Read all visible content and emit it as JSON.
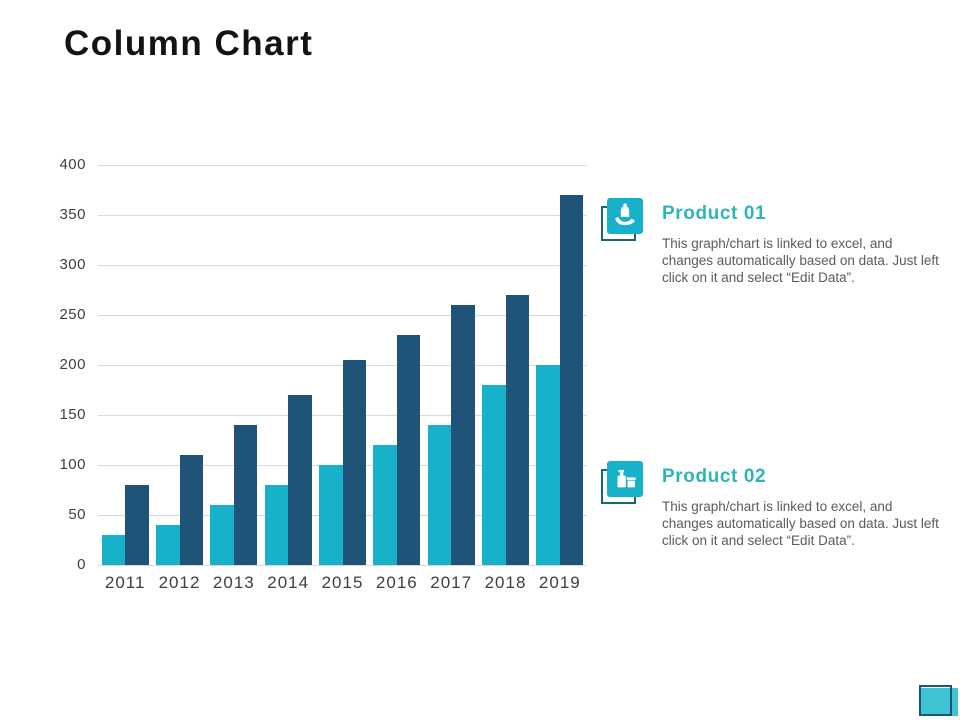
{
  "slide": {
    "title": "Column Chart"
  },
  "chart_data": {
    "type": "bar",
    "title": "",
    "categories": [
      "2011",
      "2012",
      "2013",
      "2014",
      "2015",
      "2016",
      "2017",
      "2018",
      "2019"
    ],
    "series": [
      {
        "name": "Product 01",
        "color": "#17b1c9",
        "values": [
          30,
          40,
          60,
          80,
          100,
          120,
          140,
          180,
          200
        ]
      },
      {
        "name": "Product 02",
        "color": "#1f5377",
        "values": [
          80,
          110,
          140,
          170,
          205,
          230,
          260,
          270,
          370
        ]
      }
    ],
    "xlabel": "",
    "ylabel": "",
    "ylim": [
      0,
      400
    ],
    "ytick_step": 50,
    "yticks": [
      0,
      50,
      100,
      150,
      200,
      250,
      300,
      350,
      400
    ],
    "grid": true,
    "legend_position": "none"
  },
  "panel": {
    "items": [
      {
        "icon": "hand-holding-product-icon",
        "heading": "Product 01",
        "body_lines": [
          "This graph/chart is linked to excel, and",
          "changes automatically based on data. Just left",
          "click on it and select “Edit Data”."
        ]
      },
      {
        "icon": "product-bottles-icon",
        "heading": "Product 02",
        "body_lines": [
          "This graph/chart is linked to excel, and",
          "changes automatically based on data. Just left",
          "click on it and select “Edit Data”."
        ]
      }
    ]
  },
  "colors": {
    "bar_teal": "#17b1c9",
    "bar_navy": "#1f5377",
    "heading_teal": "#2fb4b9",
    "body_text_gray": "#5b5b5b",
    "axis_label_gray": "#3f3f3f",
    "gridline_gray": "#d9d9d9",
    "title_black": "#131313",
    "corner_fill_teal": "#3ec3d3",
    "icon_outline_teal": "#1b6578"
  }
}
